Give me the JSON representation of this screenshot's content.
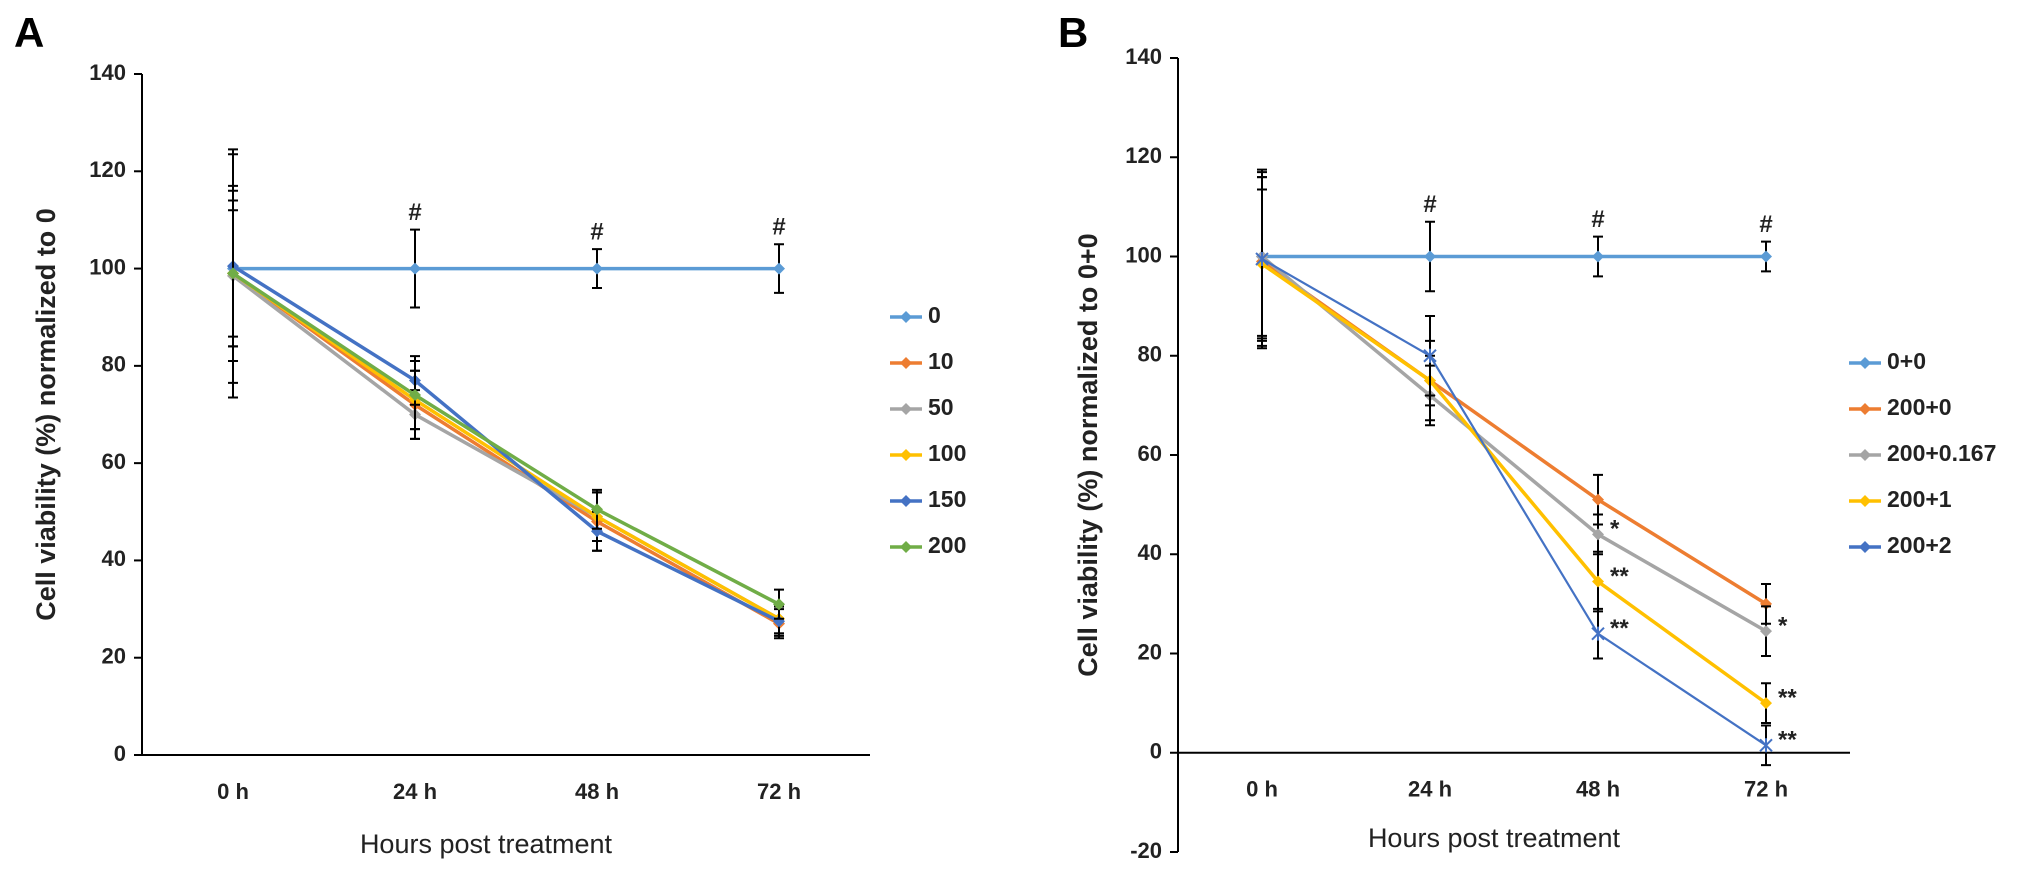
{
  "chart_data": [
    {
      "type": "line",
      "panel": "A",
      "y_label": "Cell viability (%) normalized to 0",
      "x_label": "Hours post treatment",
      "categories": [
        "0 h",
        "24 h",
        "48 h",
        "72 h"
      ],
      "ylim": [
        0,
        140
      ],
      "yticks": [
        0,
        20,
        40,
        60,
        80,
        100,
        120,
        140
      ],
      "series": [
        {
          "name": "0",
          "color": "#5B9BD5",
          "marker": "diamond",
          "values": [
            100,
            100,
            100,
            100
          ],
          "errors": [
            16,
            8,
            4,
            5
          ],
          "annotations": [
            null,
            "#",
            "#",
            "#"
          ]
        },
        {
          "name": "10",
          "color": "#ED7D31",
          "marker": "diamond",
          "values": [
            99,
            72,
            48,
            27
          ],
          "errors": [
            15,
            7,
            6,
            3
          ]
        },
        {
          "name": "50",
          "color": "#A5A5A5",
          "marker": "diamond",
          "values": [
            98.5,
            70,
            49,
            28
          ],
          "errors": [
            25,
            5,
            5,
            3
          ]
        },
        {
          "name": "100",
          "color": "#FFC000",
          "marker": "diamond",
          "values": [
            99,
            73,
            49,
            28
          ],
          "errors": [
            18,
            6,
            5,
            3
          ]
        },
        {
          "name": "150",
          "color": "#4472C4",
          "marker": "diamond",
          "values": [
            100.5,
            77,
            46,
            27.5
          ],
          "errors": [
            24,
            5,
            4,
            3
          ]
        },
        {
          "name": "200",
          "color": "#70AD47",
          "marker": "diamond",
          "values": [
            99,
            74,
            50.5,
            31
          ],
          "errors": [
            13,
            7,
            4,
            3
          ]
        }
      ]
    },
    {
      "type": "line",
      "panel": "B",
      "y_label": "Cell viability (%) normalized to 0+0",
      "x_label": "Hours post treatment",
      "categories": [
        "0 h",
        "24 h",
        "48 h",
        "72 h"
      ],
      "ylim": [
        -20,
        140
      ],
      "yticks": [
        -20,
        0,
        20,
        40,
        60,
        80,
        100,
        120,
        140
      ],
      "series": [
        {
          "name": "0+0",
          "color": "#5B9BD5",
          "marker": "diamond",
          "values": [
            100,
            100,
            100,
            100
          ],
          "errors": [
            16,
            7,
            4,
            3
          ],
          "annotations": [
            null,
            "#",
            "#",
            "#"
          ]
        },
        {
          "name": "200+0",
          "color": "#ED7D31",
          "marker": "diamond",
          "values": [
            99,
            75,
            51,
            30
          ],
          "errors": [
            17,
            8,
            5,
            4
          ]
        },
        {
          "name": "200+0.167",
          "color": "#A5A5A5",
          "marker": "diamond",
          "values": [
            100,
            72,
            44,
            24.5
          ],
          "errors": [
            17,
            6,
            4,
            5
          ],
          "annotations": [
            null,
            null,
            "*",
            "*"
          ]
        },
        {
          "name": "200+1",
          "color": "#FFC000",
          "marker": "diamond",
          "values": [
            98.5,
            75,
            34.5,
            10
          ],
          "errors": [
            15,
            5,
            6,
            4
          ],
          "annotations": [
            null,
            null,
            "**",
            "**"
          ]
        },
        {
          "name": "200+2",
          "color": "#4472C4",
          "marker": "star",
          "values": [
            99.5,
            80,
            24,
            1.5
          ],
          "errors": [
            18,
            8,
            5,
            4
          ],
          "annotations": [
            null,
            null,
            "**",
            "**"
          ]
        }
      ]
    }
  ]
}
